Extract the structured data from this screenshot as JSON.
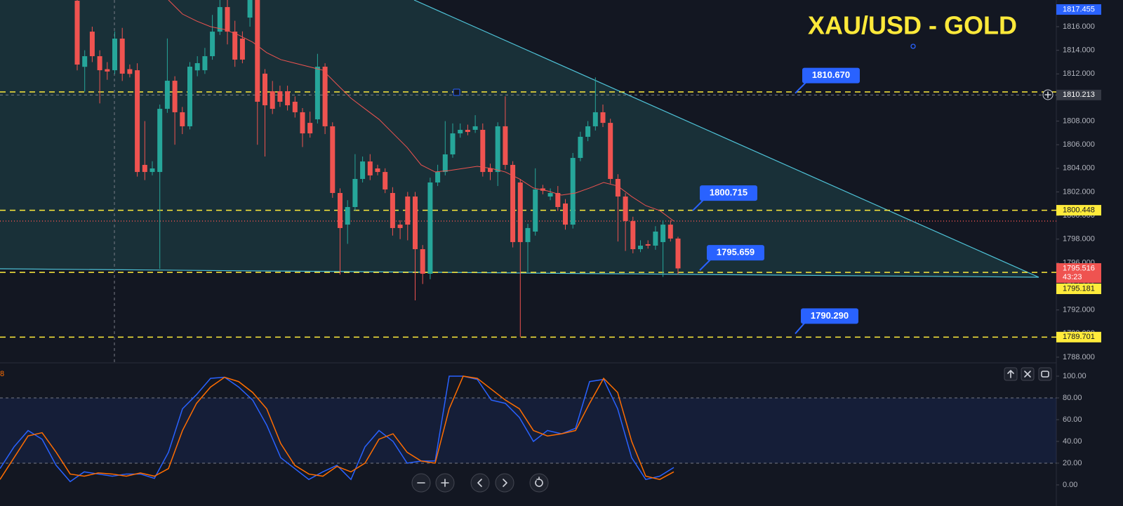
{
  "chart_data": [
    {
      "type": "candlestick",
      "title": "XAU/USD - GOLD",
      "up_color": "#26a69a",
      "down_color": "#ef5350",
      "open": [
        1818.2,
        1812.6,
        1815.58,
        1813.5,
        1812.4,
        1812.31,
        1814.99,
        1812.4,
        1812.31,
        1804.29,
        1803.69,
        1803.69,
        1809.04,
        1811.42,
        1808.75,
        1807.56,
        1812.3,
        1812.31,
        1813.5,
        1815.58,
        1817.66,
        1815.58,
        1814.99,
        1816.77,
        1818.26,
        1812.02,
        1810.53,
        1810.53,
        1810.53,
        1809.64,
        1808.75,
        1807.85,
        1808.15,
        1812.61,
        1807.56,
        1801.91,
        1799.23,
        1800.72,
        1803.1,
        1804.58,
        1803.99,
        1803.69,
        1801.91,
        1799.23,
        1801.61,
        1801.61,
        1797.15,
        1795.07,
        1802.8,
        1803.69,
        1805.18,
        1806.96,
        1807.26,
        1807.26,
        1807.26,
        1803.99,
        1803.69,
        1807.56,
        1804.29,
        1802.8,
        1797.75,
        1798.64,
        1802.3,
        1801.61,
        1801.91,
        1801.02,
        1799.23,
        1804.88,
        1806.67,
        1807.56,
        1808.75,
        1807.85,
        1803.1,
        1801.61,
        1799.53,
        1797.15,
        1797.57,
        1797.45,
        1797.75,
        1799.23,
        1798.05
      ],
      "high": [
        1818.26,
        1814.0,
        1816.0,
        1814.0,
        1813.0,
        1815.6,
        1815.9,
        1812.8,
        1812.9,
        1808.0,
        1804.6,
        1809.4,
        1815.0,
        1811.8,
        1809.2,
        1813.0,
        1813.5,
        1814.2,
        1817.0,
        1818.26,
        1818.26,
        1816.5,
        1815.6,
        1818.26,
        1818.26,
        1812.4,
        1811.4,
        1811.0,
        1811.0,
        1810.1,
        1809.1,
        1808.8,
        1813.7,
        1812.9,
        1807.9,
        1802.3,
        1801.3,
        1805.2,
        1805.0,
        1805.2,
        1804.3,
        1804.0,
        1802.4,
        1799.6,
        1802.0,
        1802.0,
        1797.5,
        1803.2,
        1804.3,
        1808.0,
        1807.8,
        1807.8,
        1807.7,
        1808.5,
        1807.8,
        1804.4,
        1807.9,
        1810.1,
        1804.6,
        1803.1,
        1799.3,
        1804.0,
        1802.6,
        1802.3,
        1802.5,
        1801.4,
        1805.3,
        1807.1,
        1808.0,
        1811.7,
        1809.4,
        1808.2,
        1803.5,
        1801.9,
        1799.9,
        1797.9,
        1797.9,
        1799.1,
        1799.6,
        1799.6,
        1798.2
      ],
      "low": [
        1812.3,
        1810.5,
        1813.0,
        1809.5,
        1811.5,
        1812.0,
        1811.4,
        1811.7,
        1803.3,
        1803.0,
        1803.4,
        1795.49,
        1808.7,
        1806.0,
        1806.9,
        1807.3,
        1811.8,
        1812.0,
        1813.2,
        1815.3,
        1814.5,
        1812.6,
        1812.9,
        1816.0,
        1806.0,
        1805.0,
        1808.6,
        1809.2,
        1808.9,
        1808.3,
        1805.8,
        1806.6,
        1807.8,
        1806.9,
        1801.5,
        1795.0,
        1797.6,
        1800.4,
        1802.8,
        1803.0,
        1803.4,
        1801.9,
        1798.3,
        1798.0,
        1797.9,
        1792.81,
        1794.2,
        1794.6,
        1802.5,
        1803.4,
        1804.9,
        1806.6,
        1806.8,
        1807.0,
        1803.3,
        1803.0,
        1802.5,
        1803.9,
        1797.3,
        1789.7,
        1795.2,
        1798.3,
        1801.8,
        1801.3,
        1800.4,
        1798.8,
        1798.9,
        1804.6,
        1806.3,
        1807.2,
        1807.5,
        1802.7,
        1797.8,
        1797.0,
        1796.8,
        1796.9,
        1797.2,
        1797.1,
        1794.8,
        1797.8,
        1795.0
      ],
      "close": [
        1812.79,
        1813.5,
        1813.5,
        1812.31,
        1812.2,
        1814.99,
        1812.02,
        1812.0,
        1803.69,
        1803.69,
        1803.99,
        1809.04,
        1811.42,
        1808.75,
        1807.56,
        1812.61,
        1812.91,
        1813.5,
        1815.58,
        1817.66,
        1815.58,
        1813.21,
        1813.21,
        1818.26,
        1809.64,
        1809.34,
        1809.04,
        1809.64,
        1809.34,
        1808.75,
        1806.96,
        1806.96,
        1812.61,
        1807.56,
        1801.91,
        1798.94,
        1800.72,
        1803.1,
        1804.58,
        1803.4,
        1803.69,
        1802.21,
        1798.94,
        1798.94,
        1799.23,
        1797.15,
        1795.07,
        1802.8,
        1803.69,
        1805.18,
        1806.96,
        1807.26,
        1807.08,
        1807.56,
        1803.69,
        1803.69,
        1807.56,
        1804.29,
        1797.75,
        1797.75,
        1798.94,
        1802.21,
        1802.1,
        1801.91,
        1800.72,
        1799.23,
        1804.88,
        1806.67,
        1807.56,
        1808.75,
        1807.85,
        1803.1,
        1801.61,
        1799.53,
        1797.15,
        1797.45,
        1797.45,
        1798.64,
        1799.23,
        1798.05,
        1795.52
      ],
      "moving_average": {
        "color": "#ef5350",
        "values": [
          1818.26,
          1817.07,
          1816.48,
          1816.0,
          1815.76,
          1815.29,
          1814.69,
          1813.8,
          1813.21,
          1812.91,
          1812.61,
          1812.31,
          1811.12,
          1809.94,
          1809.04,
          1808.15,
          1806.96,
          1805.77,
          1804.29,
          1803.69,
          1803.81,
          1803.99,
          1804.17,
          1803.99,
          1803.69,
          1803.1,
          1802.33,
          1802.09,
          1801.73,
          1801.91,
          1802.33,
          1802.8,
          1802.5,
          1801.61,
          1800.84,
          1800.42,
          1799.53
        ]
      },
      "ylim": [
        1787.58,
        1818.26
      ],
      "yticks": [
        {
          "value": 1788,
          "label": "1788.000"
        },
        {
          "value": 1790,
          "label": "1790.000"
        },
        {
          "value": 1792,
          "label": "1792.000"
        },
        {
          "value": 1794,
          "label": "1794.000"
        },
        {
          "value": 1796,
          "label": "1796.000"
        },
        {
          "value": 1798,
          "label": "1798.000"
        },
        {
          "value": 1800,
          "label": "1800.000"
        },
        {
          "value": 1802,
          "label": "1802.000"
        },
        {
          "value": 1804,
          "label": "1804.000"
        },
        {
          "value": 1806,
          "label": "1806.000"
        },
        {
          "value": 1808,
          "label": "1808.000"
        },
        {
          "value": 1810,
          "label": "1810.000"
        },
        {
          "value": 1812,
          "label": "1812.000"
        },
        {
          "value": 1814,
          "label": "1814.000"
        },
        {
          "value": 1816,
          "label": "1816.000"
        }
      ],
      "resistance_line": 1810.47,
      "reference_line": 1799.53,
      "levels": {
        "color": "#ffeb3b",
        "values": [
          1800.448,
          1795.181,
          1789.701
        ]
      },
      "top_badge": 1817.455,
      "crosshair_price": 1810.213,
      "last_price": 1795.516,
      "countdown": "43:23",
      "callouts": {
        "values": [
          1810.67,
          1800.715,
          1795.659,
          1790.29
        ],
        "value_labels": [
          "1810.670",
          "1800.715",
          "1795.659",
          "1790.290"
        ]
      }
    },
    {
      "type": "line",
      "indicator_label": "8",
      "series": [
        {
          "color": "#2962ff",
          "values": [
            15,
            35,
            50,
            42,
            18,
            3,
            12,
            10,
            8,
            10,
            10,
            6,
            30,
            70,
            83,
            98,
            99,
            90,
            78,
            55,
            25,
            15,
            5,
            12,
            18,
            5,
            35,
            50,
            40,
            20,
            22,
            22,
            100,
            100,
            97,
            78,
            75,
            62,
            40,
            50,
            47,
            52,
            95,
            97,
            70,
            25,
            5,
            8,
            16
          ]
        },
        {
          "color": "#ff6d00",
          "values": [
            5,
            25,
            45,
            48,
            30,
            10,
            8,
            11,
            10,
            8,
            11,
            8,
            15,
            50,
            75,
            90,
            99,
            95,
            85,
            70,
            38,
            18,
            10,
            8,
            17,
            12,
            20,
            42,
            47,
            30,
            22,
            20,
            70,
            100,
            98,
            88,
            78,
            70,
            50,
            45,
            47,
            50,
            75,
            98,
            85,
            40,
            8,
            5,
            12
          ]
        }
      ],
      "bands": [
        20,
        80
      ],
      "ylim": [
        -19.4,
        111.6
      ],
      "yticks": [
        {
          "value": 0,
          "label": "0.00"
        },
        {
          "value": 20,
          "label": "20.00"
        },
        {
          "value": 40,
          "label": "40.00"
        },
        {
          "value": 60,
          "label": "60.00"
        },
        {
          "value": 80,
          "label": "80.00"
        },
        {
          "value": 100,
          "label": "100.00"
        }
      ]
    }
  ]
}
